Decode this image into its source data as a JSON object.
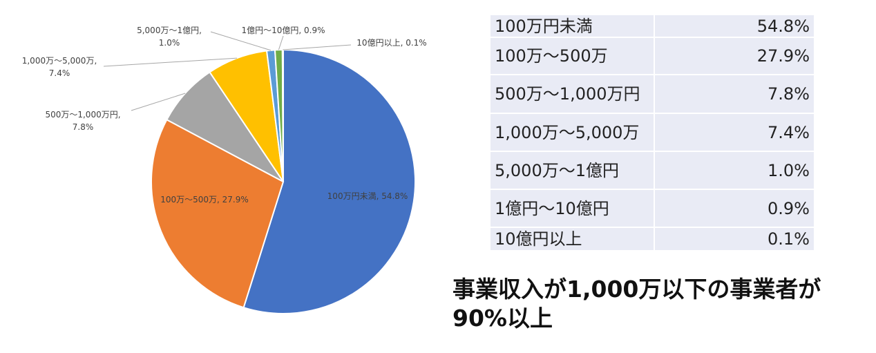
{
  "chart_data": {
    "type": "pie",
    "title": "",
    "slices": [
      {
        "label": "100万円未満",
        "value": 54.8,
        "color": "#4472c4",
        "data_label": "100万円未満, 54.8%"
      },
      {
        "label": "100万〜500万",
        "value": 27.9,
        "color": "#ed7d31",
        "data_label": "100万〜500万, 27.9%"
      },
      {
        "label": "500万〜1,000万円",
        "value": 7.8,
        "color": "#a5a5a5",
        "data_label": "500万〜1,000万円, 7.8%"
      },
      {
        "label": "1,000万〜5,000万",
        "value": 7.4,
        "color": "#ffc000",
        "data_label": "1,000万〜5,000万, 7.4%"
      },
      {
        "label": "5,000万〜1億円",
        "value": 1.0,
        "color": "#5b9bd5",
        "data_label": "5,000万〜1億円, 1.0%"
      },
      {
        "label": "1億円〜10億円",
        "value": 0.9,
        "color": "#70ad47",
        "data_label": "1億円〜10億円, 0.9%"
      },
      {
        "label": "10億円以上",
        "value": 0.1,
        "color": "#264478",
        "data_label": "10億円以上, 0.1%"
      }
    ]
  },
  "table": {
    "rows": [
      {
        "label": "100万円未満",
        "value": "54.8%"
      },
      {
        "label": "100万〜500万",
        "value": "27.9%"
      },
      {
        "label": "500万〜1,000万円",
        "value": "7.8%"
      },
      {
        "label": "1,000万〜5,000万",
        "value": "7.4%"
      },
      {
        "label": "5,000万〜1億円",
        "value": "1.0%"
      },
      {
        "label": "1億円〜10億円",
        "value": "0.9%"
      },
      {
        "label": "10億円以上",
        "value": "0.1%"
      }
    ]
  },
  "headline": {
    "line1": "事業収入が1,000万以下の事業者が",
    "line2": "90%以上"
  }
}
